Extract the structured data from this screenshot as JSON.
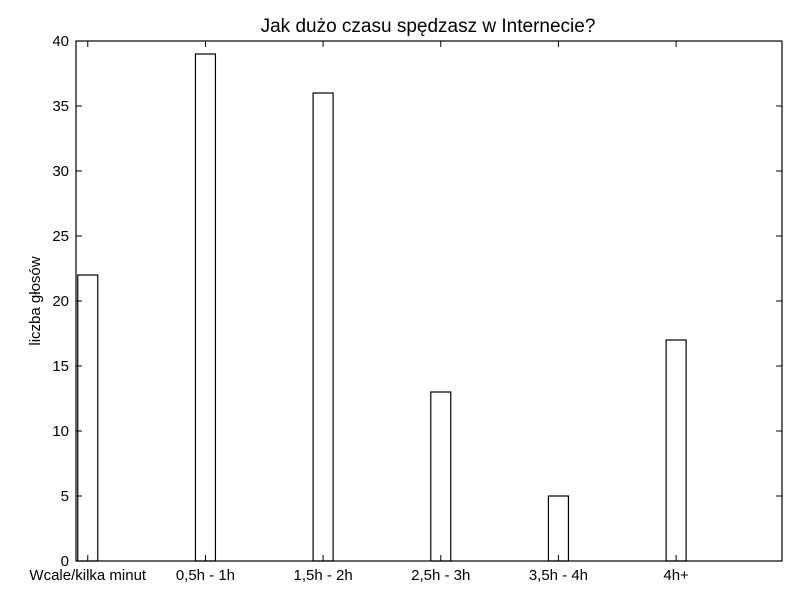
{
  "chart_data": {
    "type": "bar",
    "title": "Jak dużo czasu spędzasz w Internecie?",
    "xlabel": "",
    "ylabel": "liczba głosów",
    "categories": [
      "Wcale/kilka minut",
      "0,5h - 1h",
      "1,5h - 2h",
      "2,5h - 3h",
      "3,5h - 4h",
      "4h+"
    ],
    "values": [
      22,
      39,
      36,
      13,
      5,
      17
    ],
    "ylim": [
      0,
      40
    ],
    "yticks": [
      0,
      5,
      10,
      15,
      20,
      25,
      30,
      35,
      40
    ],
    "grid": false,
    "legend": "none",
    "bar_fill": "#ffffff",
    "bar_edge": "#000000"
  }
}
